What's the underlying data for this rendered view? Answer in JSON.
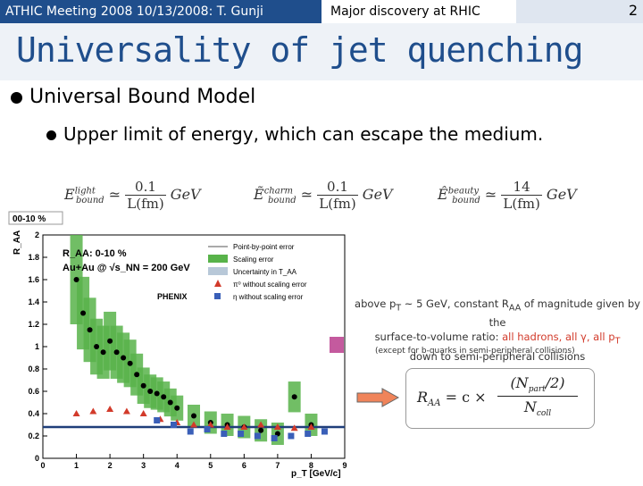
{
  "header": {
    "left_text": "ATHIC Meeting 2008 10/13/2008: T. Gunji",
    "mid_text": "Major discovery at RHIC",
    "page_number": "2"
  },
  "title": "Universality of jet quenching",
  "bullets": {
    "level1": "Universal Bound Model",
    "level2": "Upper limit of energy, which can escape the medium."
  },
  "formulas": [
    {
      "lhs": "E",
      "sup": "light",
      "sub": "bound",
      "num": "0.1",
      "den": "L(fm)",
      "unit": "GeV"
    },
    {
      "lhs": "Ẽ",
      "sup": "charm",
      "sub": "bound",
      "num": "0.1",
      "den": "L(fm)",
      "unit": "GeV"
    },
    {
      "lhs": "Ê",
      "sup": "beauty",
      "sub": "bound",
      "num": "14",
      "den": "L(fm)",
      "unit": "GeV"
    }
  ],
  "side_note": {
    "line1": "above p",
    "line1_sub": "T",
    "line1b": " ~ 5 GeV, constant R",
    "line1b_sub": "AA",
    "line1c": " of magnitude given by the",
    "line2": "surface-to-volume ratio: ",
    "line2_red": "all hadrons, all γ, all p",
    "line2_red_sub": "T",
    "line3": "down to semi-peripheral collisions",
    "except": "(except for b-quarks in semi-peripheral collisions)"
  },
  "formula_box": {
    "lhs": "R",
    "lhs_sub": "AA",
    "eq": " = c × ",
    "num": "(N",
    "num_sub": "part",
    "num_end": "/2)",
    "den": "N",
    "den_sub": "coll"
  },
  "chart_data": {
    "type": "scatter",
    "corner_label": "00-10 %",
    "ylabel": "R_AA",
    "xlabel": "p_T [GeV/c]",
    "xlim": [
      0,
      9
    ],
    "ylim": [
      0,
      2
    ],
    "xticks": [
      "0",
      "1",
      "2",
      "3",
      "4",
      "5",
      "6",
      "7",
      "8",
      "9"
    ],
    "yticks": [
      "0",
      "0.2",
      "0.4",
      "0.6",
      "0.8",
      "1",
      "1.2",
      "1.4",
      "1.6",
      "1.8",
      "2"
    ],
    "annotation_line1": "R_AA: 0-10 %",
    "annotation_line2": "Au+Au @ √s_NN = 200 GeV",
    "experiment": "PHENIX",
    "legend": [
      "Point-by-point error",
      "Scaling error",
      "Uncertainty in T_AA",
      "π⁰ without scaling error",
      "η without scaling error"
    ],
    "reference_line": 0.28,
    "series": [
      {
        "name": "Point-by-point error",
        "marker": "circle",
        "x": [
          1.0,
          1.2,
          1.4,
          1.6,
          1.8,
          2.0,
          2.2,
          2.4,
          2.6,
          2.8,
          3.0,
          3.2,
          3.4,
          3.6,
          3.8,
          4.0,
          4.5,
          5.0,
          5.5,
          6.0,
          6.5,
          7.0,
          7.5,
          8.0
        ],
        "y": [
          1.6,
          1.3,
          1.15,
          1.0,
          0.95,
          1.05,
          0.95,
          0.9,
          0.85,
          0.75,
          0.65,
          0.6,
          0.58,
          0.55,
          0.5,
          0.45,
          0.38,
          0.32,
          0.3,
          0.28,
          0.25,
          0.22,
          0.55,
          0.3
        ]
      },
      {
        "name": "π⁰ without scaling error",
        "marker": "triangle",
        "x": [
          1.0,
          1.5,
          2.0,
          2.5,
          3.0,
          3.5,
          4.0,
          4.5,
          5.0,
          5.5,
          6.0,
          6.5,
          7.0,
          7.5,
          8.0
        ],
        "y": [
          0.4,
          0.42,
          0.44,
          0.42,
          0.4,
          0.35,
          0.32,
          0.3,
          0.3,
          0.28,
          0.28,
          0.3,
          0.28,
          0.27,
          0.28
        ]
      },
      {
        "name": "η without scaling error",
        "marker": "square",
        "x": [
          3.4,
          3.9,
          4.4,
          4.9,
          5.4,
          5.9,
          6.4,
          6.9,
          7.4,
          7.9,
          8.4
        ],
        "y": [
          0.34,
          0.3,
          0.24,
          0.26,
          0.22,
          0.22,
          0.2,
          0.18,
          0.2,
          0.22,
          0.24
        ]
      }
    ]
  },
  "colors": {
    "header_bg": "#1f4e8c",
    "title": "#1f4e8c",
    "band": "#58b34a",
    "pi0": "#d23a2a",
    "eta": "#3a5fb8",
    "ref_line": "#1f3e7a"
  }
}
